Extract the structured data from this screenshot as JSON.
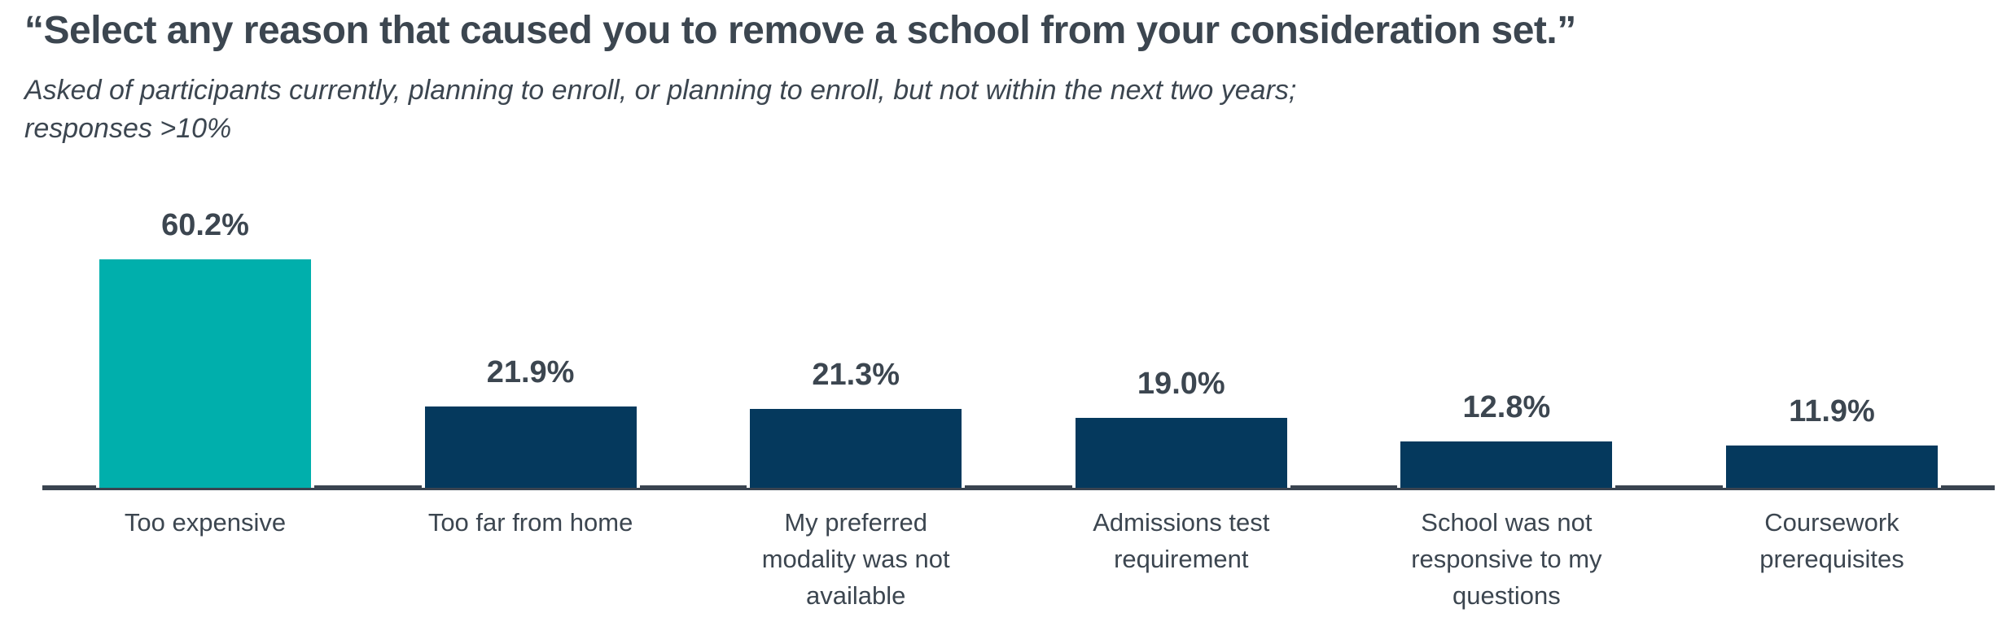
{
  "chart_data": {
    "type": "bar",
    "title": "“Select any reason that caused you to remove a school from your consideration set.”",
    "subtitle": "Asked of participants currently, planning to enroll, or planning to enroll, but not within the next two years;\nresponses >10%",
    "categories": [
      "Too expensive",
      "Too far from home",
      "My preferred\nmodality was not\navailable",
      "Admissions test\nrequirement",
      "School was not\nresponsive to my\nquestions",
      "Coursework\nprerequisites"
    ],
    "values": [
      60.2,
      21.9,
      21.3,
      19.0,
      12.8,
      11.9
    ],
    "values_display": [
      "60.2%",
      "21.9%",
      "21.3%",
      "19.0%",
      "12.8%",
      "11.9%"
    ],
    "xlabel": "",
    "ylabel": "",
    "ylim": [
      0,
      65
    ],
    "grid": false,
    "legend": null,
    "y_axis_shown": false,
    "highlight_index": 0,
    "colors": {
      "highlight_bar": "#00AFAC",
      "default_bar": "#05395D",
      "text": "#3C4650",
      "axis_line": "#3A4450",
      "bar_border": "#FFFFFF",
      "background": "#FFFFFF"
    }
  }
}
